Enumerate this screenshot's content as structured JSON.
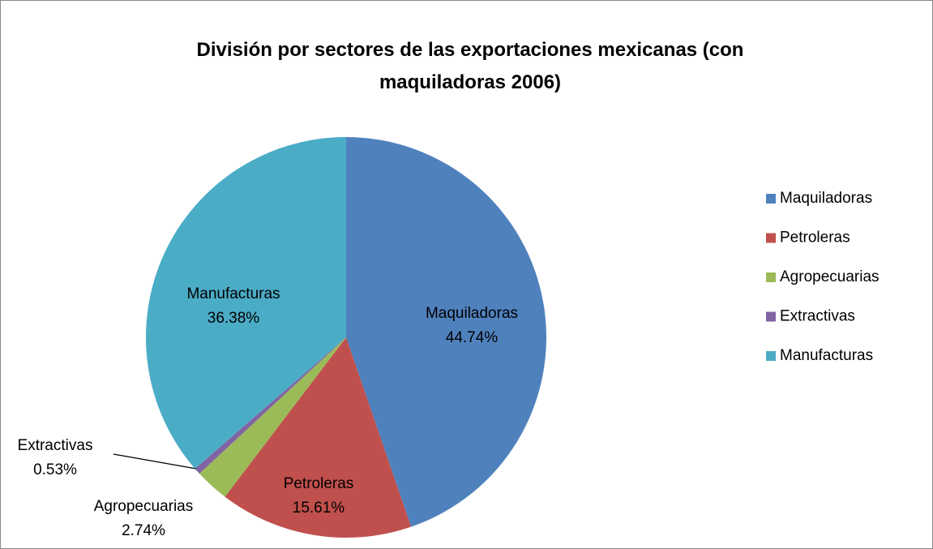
{
  "chart_data": {
    "type": "pie",
    "title": "División por sectores de las exportaciones mexicanas (con maquiladoras 2006)",
    "categories": [
      "Maquiladoras",
      "Petroleras",
      "Agropecuarias",
      "Extractivas",
      "Manufacturas"
    ],
    "values": [
      44.74,
      15.61,
      2.74,
      0.53,
      36.38
    ],
    "value_labels": [
      "44.74%",
      "15.61%",
      "2.74%",
      "0.53%",
      "36.38%"
    ],
    "colors": [
      "#4f81bd",
      "#c0504d",
      "#9bbb59",
      "#8064a2",
      "#4bacc6"
    ],
    "legend": "right"
  }
}
